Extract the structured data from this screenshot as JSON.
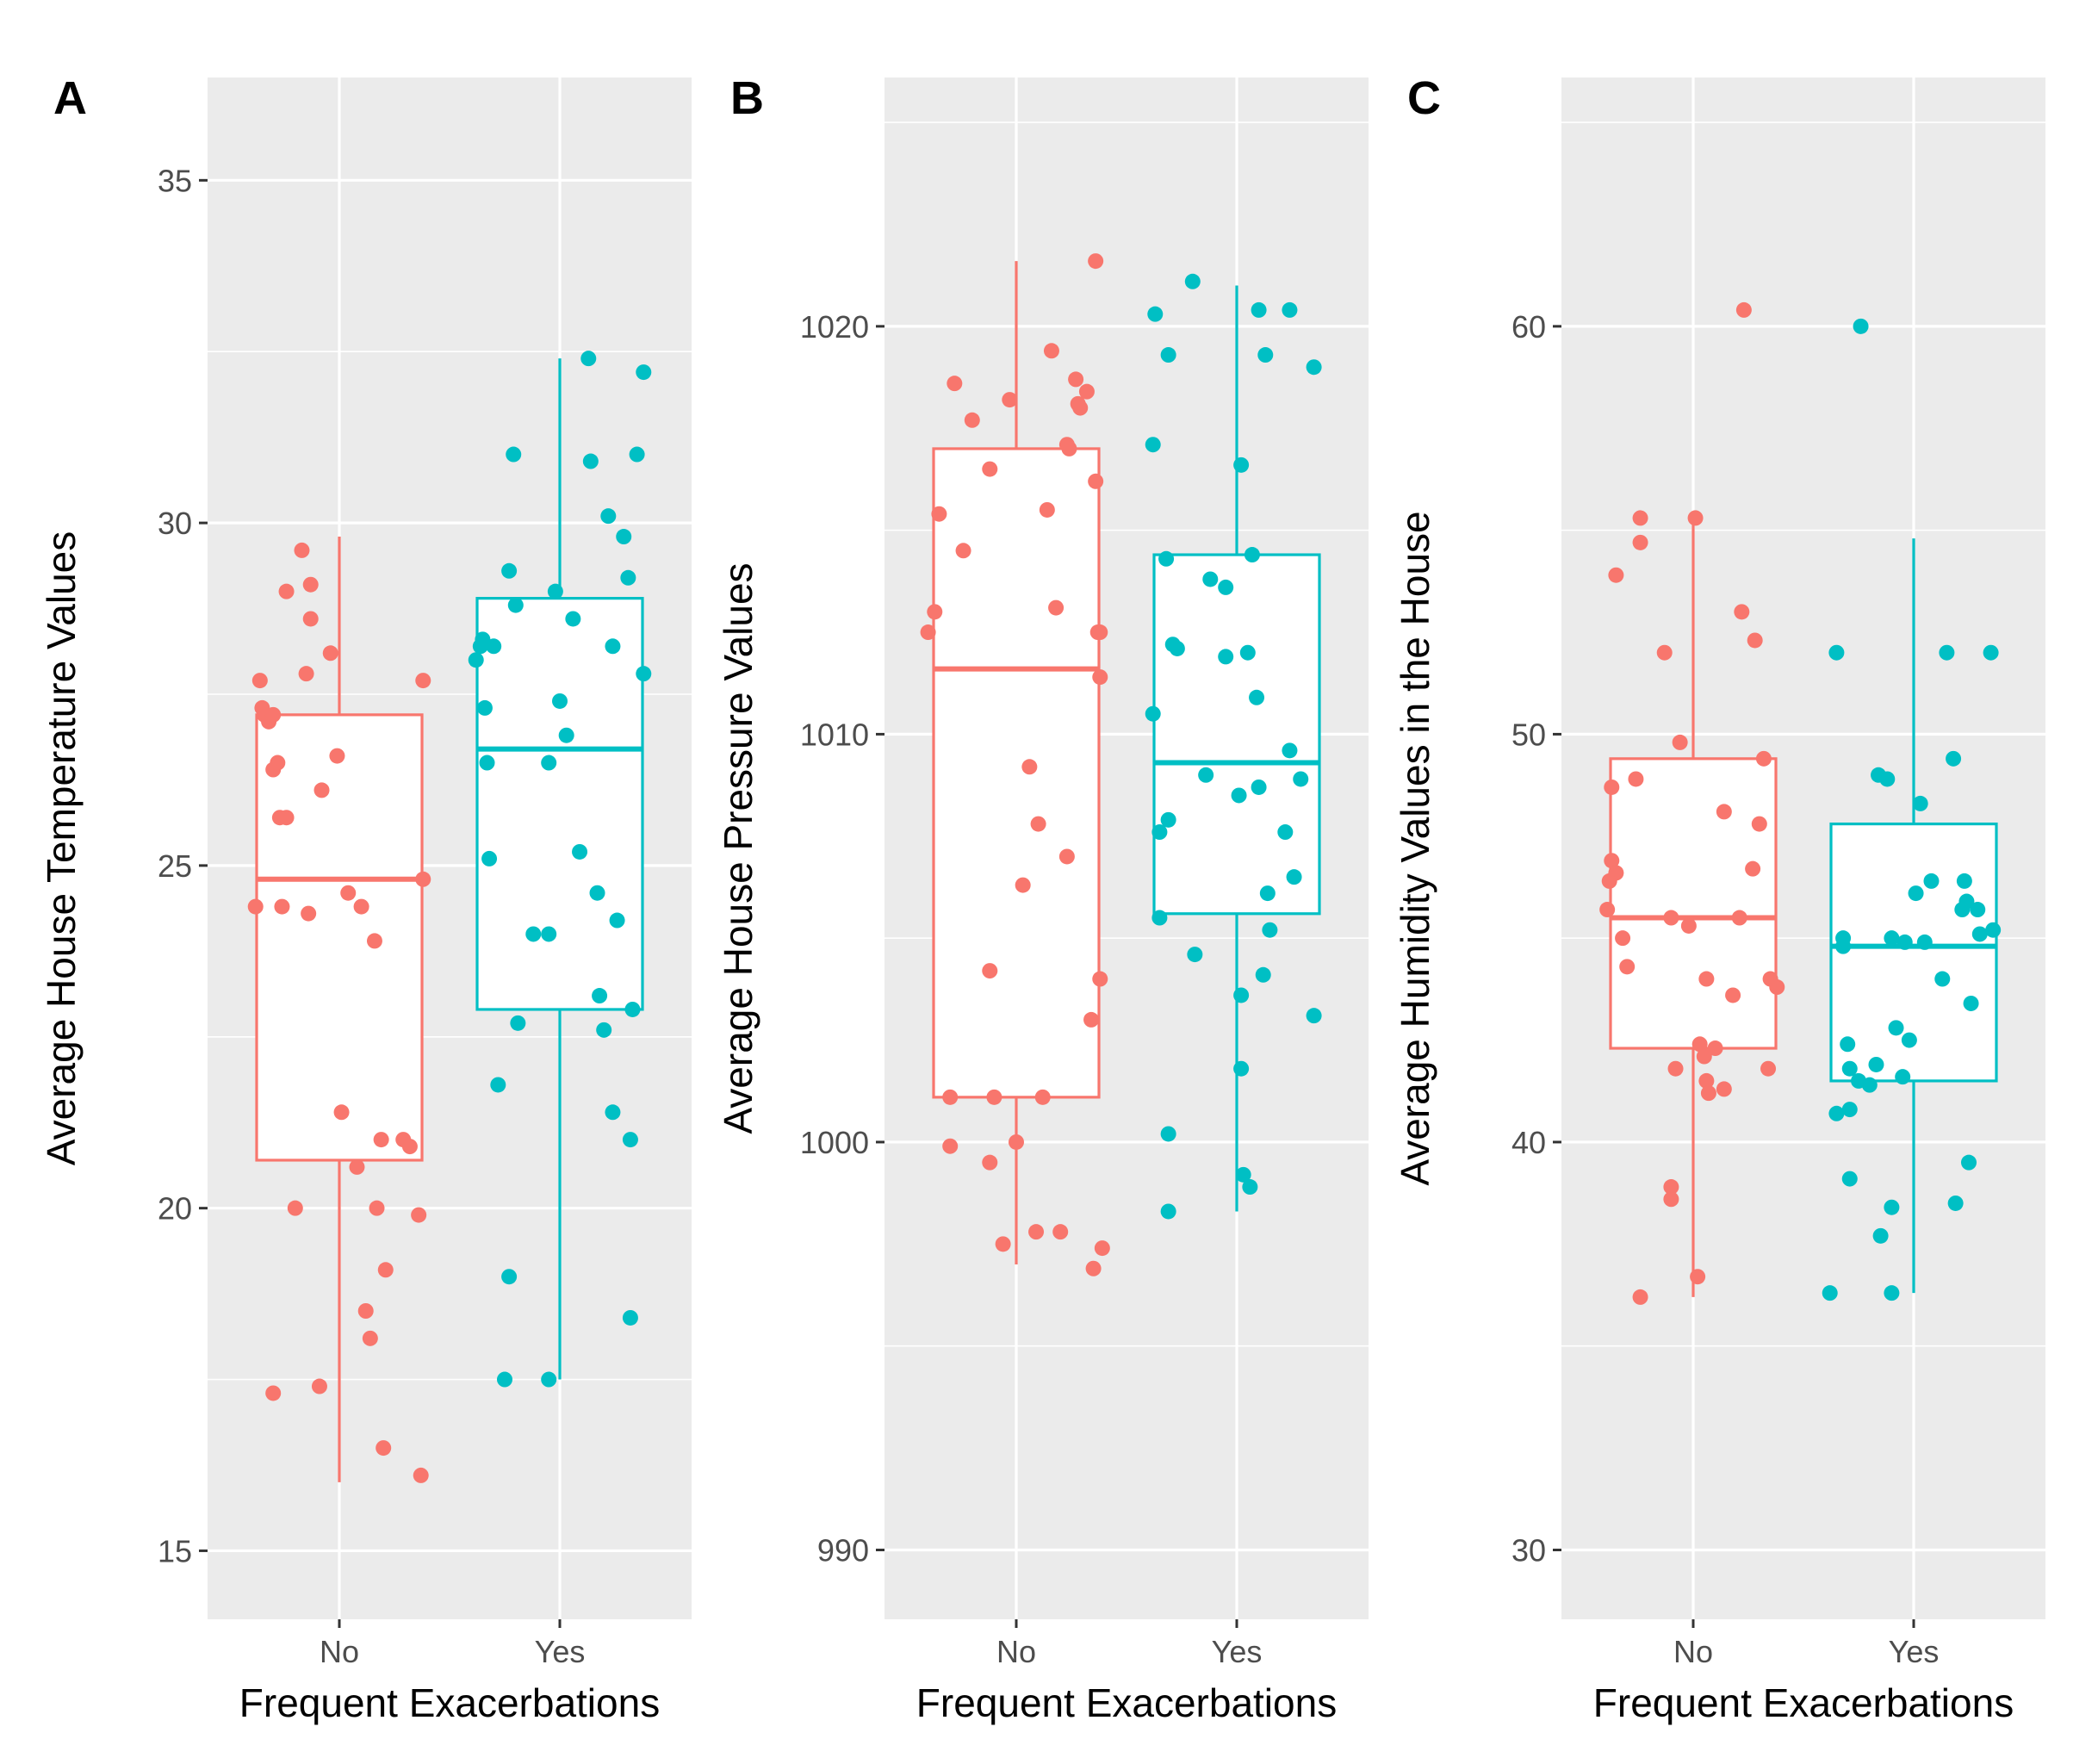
{
  "colors": {
    "No": "#F8766D",
    "Yes": "#00BFC4",
    "panel_background": "#EBEBEB",
    "grid": "#FFFFFF"
  },
  "chart_data": [
    {
      "type": "boxplot",
      "panel_label": "A",
      "xlabel": "Frequent Exacerbations",
      "ylabel": "Average House Temperature Values",
      "categories": [
        "No",
        "Yes"
      ],
      "ylim": [
        14,
        36.5
      ],
      "yticks": [
        15,
        20,
        25,
        30,
        35
      ],
      "boxes": [
        {
          "group": "No",
          "whisker_low": 16.0,
          "q1": 20.7,
          "median": 24.8,
          "q3": 27.2,
          "whisker_high": 29.8
        },
        {
          "group": "Yes",
          "whisker_low": 17.5,
          "q1": 22.9,
          "median": 26.7,
          "q3": 28.9,
          "whisker_high": 32.4
        }
      ],
      "points": {
        "No": [
          [
            -0.38,
            24.4
          ],
          [
            -0.36,
            27.7
          ],
          [
            -0.35,
            27.3
          ],
          [
            -0.34,
            27.2
          ],
          [
            -0.32,
            27.1
          ],
          [
            -0.3,
            27.2
          ],
          [
            -0.3,
            26.4
          ],
          [
            -0.28,
            26.5
          ],
          [
            -0.27,
            25.7
          ],
          [
            -0.26,
            24.4
          ],
          [
            -0.24,
            25.7
          ],
          [
            -0.24,
            29.0
          ],
          [
            -0.2,
            20.0
          ],
          [
            -0.17,
            29.6
          ],
          [
            -0.15,
            27.8
          ],
          [
            -0.14,
            24.3
          ],
          [
            -0.13,
            29.1
          ],
          [
            -0.13,
            28.6
          ],
          [
            -0.08,
            26.1
          ],
          [
            -0.04,
            28.1
          ],
          [
            -0.01,
            26.6
          ],
          [
            0.01,
            21.4
          ],
          [
            0.04,
            24.6
          ],
          [
            0.08,
            20.6
          ],
          [
            0.1,
            24.4
          ],
          [
            0.12,
            18.5
          ],
          [
            0.14,
            18.1
          ],
          [
            0.16,
            23.9
          ],
          [
            0.17,
            20.0
          ],
          [
            0.19,
            21.0
          ],
          [
            0.21,
            19.1
          ],
          [
            0.29,
            21.0
          ],
          [
            0.32,
            20.9
          ],
          [
            0.36,
            19.9
          ],
          [
            0.38,
            24.8
          ],
          [
            0.38,
            27.7
          ],
          [
            -0.3,
            17.3
          ],
          [
            -0.09,
            17.4
          ],
          [
            0.2,
            16.5
          ],
          [
            0.37,
            16.1
          ]
        ],
        "Yes": [
          [
            -0.38,
            28.0
          ],
          [
            -0.36,
            28.2
          ],
          [
            -0.35,
            28.3
          ],
          [
            -0.34,
            27.3
          ],
          [
            -0.33,
            26.5
          ],
          [
            -0.32,
            25.1
          ],
          [
            -0.3,
            28.2
          ],
          [
            -0.28,
            21.8
          ],
          [
            -0.23,
            29.3
          ],
          [
            -0.21,
            31.0
          ],
          [
            -0.2,
            28.8
          ],
          [
            -0.19,
            22.7
          ],
          [
            -0.12,
            24.0
          ],
          [
            -0.05,
            24.0
          ],
          [
            -0.05,
            26.5
          ],
          [
            -0.02,
            29.0
          ],
          [
            0.0,
            27.4
          ],
          [
            0.03,
            26.9
          ],
          [
            0.06,
            28.6
          ],
          [
            0.09,
            25.2
          ],
          [
            0.14,
            30.9
          ],
          [
            0.17,
            24.6
          ],
          [
            0.18,
            23.1
          ],
          [
            0.2,
            22.6
          ],
          [
            0.22,
            30.1
          ],
          [
            0.24,
            28.2
          ],
          [
            0.24,
            21.4
          ],
          [
            0.26,
            24.2
          ],
          [
            0.29,
            29.8
          ],
          [
            0.31,
            29.2
          ],
          [
            0.32,
            21.0
          ],
          [
            0.33,
            22.9
          ],
          [
            0.35,
            31.0
          ],
          [
            0.38,
            27.8
          ],
          [
            -0.23,
            19.0
          ],
          [
            -0.25,
            17.5
          ],
          [
            -0.05,
            17.5
          ],
          [
            0.13,
            32.4
          ],
          [
            0.32,
            18.4
          ],
          [
            0.38,
            32.2
          ]
        ]
      }
    },
    {
      "type": "boxplot",
      "panel_label": "B",
      "xlabel": "Frequent Exacerbations",
      "ylabel": "Average House Pressure Values",
      "categories": [
        "No",
        "Yes"
      ],
      "ylim": [
        988.3,
        1026.1
      ],
      "yticks": [
        990,
        1000,
        1010,
        1020
      ],
      "boxes": [
        {
          "group": "No",
          "whisker_low": 997.0,
          "q1": 1001.1,
          "median": 1011.6,
          "q3": 1017.0,
          "whisker_high": 1021.6
        },
        {
          "group": "Yes",
          "whisker_low": 998.3,
          "q1": 1005.6,
          "median": 1009.3,
          "q3": 1014.4,
          "whisker_high": 1021.0
        }
      ],
      "points": {
        "No": [
          [
            -0.4,
            1012.5
          ],
          [
            -0.37,
            1013.0
          ],
          [
            -0.35,
            1015.4
          ],
          [
            -0.3,
            999.9
          ],
          [
            -0.3,
            1001.1
          ],
          [
            -0.28,
            1018.6
          ],
          [
            -0.24,
            1014.5
          ],
          [
            -0.2,
            1017.7
          ],
          [
            -0.12,
            1004.2
          ],
          [
            -0.12,
            999.5
          ],
          [
            -0.1,
            1001.1
          ],
          [
            -0.06,
            997.5
          ],
          [
            -0.03,
            1018.2
          ],
          [
            0.0,
            1000.0
          ],
          [
            0.03,
            1006.3
          ],
          [
            0.06,
            1009.2
          ],
          [
            0.1,
            1007.8
          ],
          [
            0.12,
            1001.1
          ],
          [
            0.14,
            1015.5
          ],
          [
            0.16,
            1019.4
          ],
          [
            0.18,
            1013.1
          ],
          [
            0.2,
            997.8
          ],
          [
            0.23,
            1017.1
          ],
          [
            0.23,
            1007.0
          ],
          [
            0.24,
            1017.0
          ],
          [
            0.27,
            1018.7
          ],
          [
            0.28,
            1018.1
          ],
          [
            0.29,
            1018.0
          ],
          [
            0.32,
            1018.4
          ],
          [
            0.34,
            1003.0
          ],
          [
            0.36,
            1016.2
          ],
          [
            0.37,
            1012.5
          ],
          [
            0.38,
            1011.4
          ],
          [
            0.38,
            1004.0
          ],
          [
            0.39,
            997.4
          ],
          [
            -0.12,
            1016.5
          ],
          [
            0.09,
            997.8
          ],
          [
            0.36,
            1021.6
          ],
          [
            0.35,
            996.9
          ],
          [
            0.38,
            1012.5
          ]
        ],
        "Yes": [
          [
            -0.38,
            1017.1
          ],
          [
            -0.37,
            1020.3
          ],
          [
            -0.35,
            1007.6
          ],
          [
            -0.35,
            1005.5
          ],
          [
            -0.32,
            1014.3
          ],
          [
            -0.31,
            1019.3
          ],
          [
            -0.31,
            1007.9
          ],
          [
            -0.29,
            1012.2
          ],
          [
            -0.27,
            1012.1
          ],
          [
            -0.2,
            1021.1
          ],
          [
            -0.19,
            1004.6
          ],
          [
            -0.14,
            1009.0
          ],
          [
            -0.12,
            1013.8
          ],
          [
            -0.05,
            1013.6
          ],
          [
            -0.05,
            1011.9
          ],
          [
            0.01,
            1008.5
          ],
          [
            0.02,
            1016.6
          ],
          [
            0.05,
            1012.0
          ],
          [
            0.07,
            1014.4
          ],
          [
            0.09,
            1010.9
          ],
          [
            0.1,
            1008.7
          ],
          [
            0.13,
            1019.3
          ],
          [
            0.15,
            1005.2
          ],
          [
            0.22,
            1007.6
          ],
          [
            0.24,
            1009.6
          ],
          [
            0.26,
            1006.5
          ],
          [
            0.29,
            1008.9
          ],
          [
            0.35,
            1003.1
          ],
          [
            0.35,
            1019.0
          ],
          [
            0.1,
            1020.4
          ],
          [
            0.24,
            1020.4
          ],
          [
            -0.31,
            1000.2
          ],
          [
            -0.31,
            998.3
          ],
          [
            0.02,
            1001.8
          ],
          [
            0.02,
            1003.6
          ],
          [
            0.03,
            999.2
          ],
          [
            0.06,
            998.9
          ],
          [
            0.12,
            1004.1
          ],
          [
            0.14,
            1006.1
          ],
          [
            -0.38,
            1010.5
          ]
        ]
      }
    },
    {
      "type": "boxplot",
      "panel_label": "C",
      "xlabel": "Frequent Exacerbations",
      "ylabel": "Average Humidity Values in the House",
      "categories": [
        "No",
        "Yes"
      ],
      "ylim": [
        28.3,
        66.1
      ],
      "yticks": [
        30,
        40,
        50,
        60
      ],
      "boxes": [
        {
          "group": "No",
          "whisker_low": 36.2,
          "q1": 42.3,
          "median": 45.5,
          "q3": 49.4,
          "whisker_high": 55.3
        },
        {
          "group": "Yes",
          "whisker_low": 36.3,
          "q1": 41.5,
          "median": 44.8,
          "q3": 47.8,
          "whisker_high": 54.8
        }
      ],
      "points": {
        "No": [
          [
            -0.39,
            45.7
          ],
          [
            -0.38,
            46.4
          ],
          [
            -0.37,
            46.9
          ],
          [
            -0.37,
            48.7
          ],
          [
            -0.35,
            46.6
          ],
          [
            -0.35,
            53.9
          ],
          [
            -0.32,
            45.0
          ],
          [
            -0.3,
            44.3
          ],
          [
            -0.26,
            48.9
          ],
          [
            -0.24,
            55.3
          ],
          [
            -0.24,
            54.7
          ],
          [
            -0.13,
            52.0
          ],
          [
            -0.1,
            45.5
          ],
          [
            -0.1,
            38.9
          ],
          [
            -0.1,
            38.6
          ],
          [
            -0.08,
            41.8
          ],
          [
            -0.06,
            49.8
          ],
          [
            -0.02,
            45.3
          ],
          [
            0.02,
            36.7
          ],
          [
            0.03,
            42.4
          ],
          [
            0.05,
            42.1
          ],
          [
            0.06,
            44.0
          ],
          [
            0.06,
            41.5
          ],
          [
            0.07,
            41.2
          ],
          [
            0.1,
            42.3
          ],
          [
            0.14,
            48.1
          ],
          [
            0.14,
            41.3
          ],
          [
            0.18,
            43.6
          ],
          [
            0.21,
            45.5
          ],
          [
            0.22,
            53.0
          ],
          [
            0.23,
            60.4
          ],
          [
            0.27,
            46.7
          ],
          [
            0.28,
            52.3
          ],
          [
            0.3,
            47.8
          ],
          [
            0.32,
            49.4
          ],
          [
            0.34,
            41.8
          ],
          [
            0.35,
            44.0
          ],
          [
            0.38,
            43.8
          ],
          [
            -0.24,
            36.2
          ],
          [
            0.01,
            55.3
          ]
        ],
        "Yes": [
          [
            -0.38,
            36.3
          ],
          [
            -0.35,
            40.7
          ],
          [
            -0.35,
            52.0
          ],
          [
            -0.32,
            44.8
          ],
          [
            -0.32,
            45.0
          ],
          [
            -0.3,
            42.4
          ],
          [
            -0.29,
            41.8
          ],
          [
            -0.29,
            40.8
          ],
          [
            -0.29,
            39.1
          ],
          [
            -0.25,
            41.5
          ],
          [
            -0.24,
            60.0
          ],
          [
            -0.2,
            41.4
          ],
          [
            -0.17,
            41.9
          ],
          [
            -0.16,
            49.0
          ],
          [
            -0.15,
            37.7
          ],
          [
            -0.12,
            48.9
          ],
          [
            -0.1,
            45.0
          ],
          [
            -0.1,
            38.4
          ],
          [
            -0.08,
            42.8
          ],
          [
            -0.05,
            41.6
          ],
          [
            -0.04,
            44.9
          ],
          [
            -0.02,
            42.5
          ],
          [
            0.01,
            46.1
          ],
          [
            0.03,
            48.3
          ],
          [
            0.05,
            44.9
          ],
          [
            0.08,
            46.4
          ],
          [
            0.13,
            44.0
          ],
          [
            0.15,
            52.0
          ],
          [
            0.18,
            49.4
          ],
          [
            0.19,
            38.5
          ],
          [
            0.22,
            45.7
          ],
          [
            0.23,
            46.4
          ],
          [
            0.24,
            45.9
          ],
          [
            0.25,
            39.5
          ],
          [
            0.26,
            43.4
          ],
          [
            0.29,
            45.7
          ],
          [
            0.3,
            45.1
          ],
          [
            0.35,
            52.0
          ],
          [
            0.36,
            45.2
          ],
          [
            -0.1,
            36.3
          ]
        ]
      }
    }
  ]
}
